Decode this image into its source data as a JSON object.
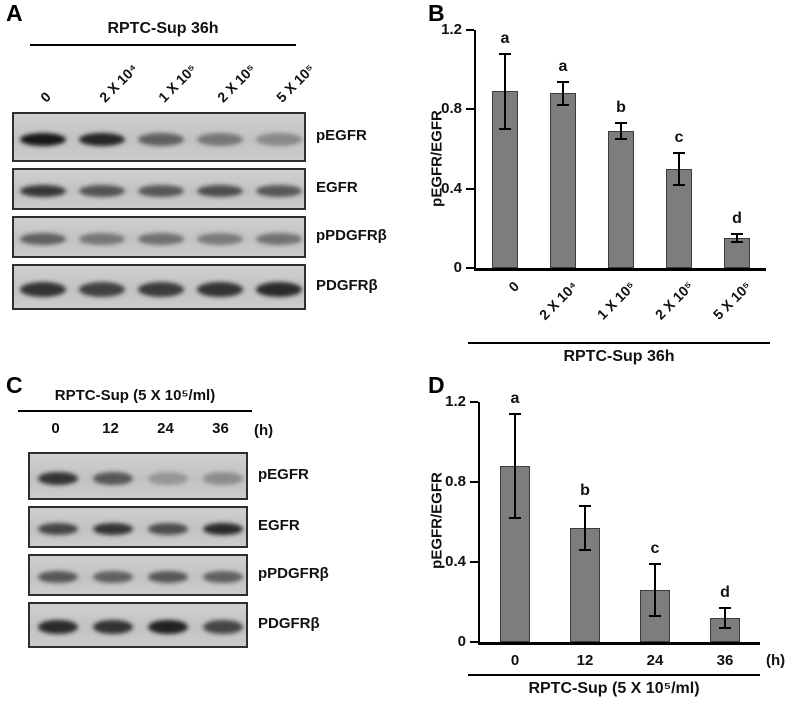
{
  "colors": {
    "bar_fill": "#7d7d7d",
    "bar_border": "#3c3c3c",
    "axis": "#000000",
    "blot_background": "#c8c8c8",
    "band": "#0f0f0f"
  },
  "panels": {
    "a": {
      "label": "A",
      "header": "RPTC-Sup  36h",
      "lanes": [
        "0",
        "2 X 10⁴",
        "1 X 10⁵",
        "2 X 10⁵",
        "5 X 10⁵"
      ],
      "rows": [
        {
          "name": "pEGFR",
          "intensities": [
            0.95,
            0.88,
            0.55,
            0.42,
            0.32
          ]
        },
        {
          "name": "EGFR",
          "intensities": [
            0.78,
            0.62,
            0.6,
            0.65,
            0.6
          ]
        },
        {
          "name": "pPDGFRβ",
          "intensities": [
            0.55,
            0.42,
            0.46,
            0.4,
            0.45
          ]
        },
        {
          "name": "PDGFRβ",
          "intensities": [
            0.8,
            0.72,
            0.75,
            0.8,
            0.85
          ]
        }
      ]
    },
    "b": {
      "label": "B"
    },
    "c": {
      "label": "C",
      "header": "RPTC-Sup (5 X 10⁵/ml)",
      "lanes": [
        "0",
        "12",
        "24",
        "36"
      ],
      "unit": "(h)",
      "rows": [
        {
          "name": "pEGFR",
          "intensities": [
            0.8,
            0.6,
            0.25,
            0.3
          ]
        },
        {
          "name": "EGFR",
          "intensities": [
            0.7,
            0.8,
            0.65,
            0.85
          ]
        },
        {
          "name": "pPDGFRβ",
          "intensities": [
            0.6,
            0.55,
            0.6,
            0.55
          ]
        },
        {
          "name": "PDGFRβ",
          "intensities": [
            0.85,
            0.8,
            0.9,
            0.7
          ]
        }
      ]
    },
    "d": {
      "label": "D"
    }
  },
  "chart_data": [
    {
      "panel": "B",
      "type": "bar",
      "ylabel": "pEGFR/EGFR",
      "xlabel": "RPTC-Sup  36h",
      "ylim": [
        0,
        1.2
      ],
      "yticks": [
        0,
        0.4,
        0.8,
        1.2
      ],
      "categories": [
        "0",
        "2 X 10⁴",
        "1 X 10⁵",
        "2 X 10⁵",
        "5 X 10⁵"
      ],
      "values": [
        0.89,
        0.88,
        0.69,
        0.5,
        0.15
      ],
      "errors": [
        0.19,
        0.06,
        0.04,
        0.08,
        0.02
      ],
      "letters": [
        "a",
        "a",
        "b",
        "c",
        "d"
      ],
      "rotate_x_labels": true,
      "grid": false,
      "legend": "none"
    },
    {
      "panel": "D",
      "type": "bar",
      "ylabel": "pEGFR/EGFR",
      "xlabel": "RPTC-Sup (5 X 10⁵/ml)",
      "x_unit": "(h)",
      "ylim": [
        0,
        1.2
      ],
      "yticks": [
        0,
        0.4,
        0.8,
        1.2
      ],
      "categories": [
        "0",
        "12",
        "24",
        "36"
      ],
      "values": [
        0.88,
        0.57,
        0.26,
        0.12
      ],
      "errors": [
        0.26,
        0.11,
        0.13,
        0.05
      ],
      "letters": [
        "a",
        "b",
        "c",
        "d"
      ],
      "rotate_x_labels": false,
      "grid": false,
      "legend": "none"
    }
  ]
}
